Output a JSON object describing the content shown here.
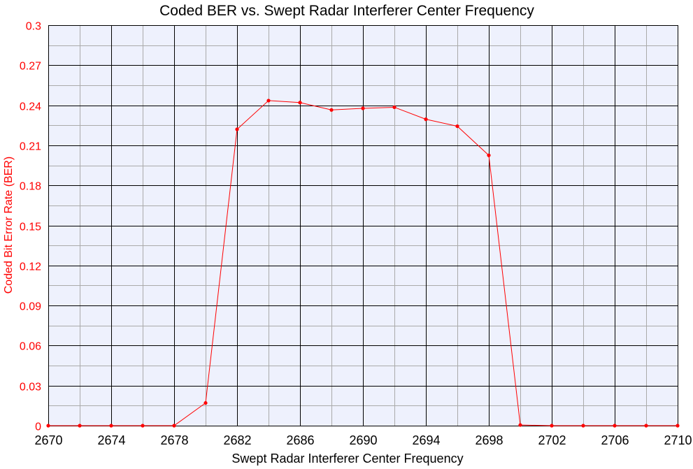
{
  "chart_data": {
    "type": "line",
    "title": "Coded BER vs. Swept Radar Interferer Center Frequency",
    "xlabel": "Swept Radar Interferer Center Frequency",
    "ylabel": "Coded Bit Error Rate (BER)",
    "xlim": [
      2670,
      2710
    ],
    "ylim": [
      0,
      0.3
    ],
    "x_ticks": [
      "2670",
      "2674",
      "2678",
      "2682",
      "2686",
      "2690",
      "2694",
      "2698",
      "2702",
      "2706",
      "2710"
    ],
    "y_ticks": [
      "0",
      "0.03",
      "0.06",
      "0.09",
      "0.12",
      "0.15",
      "0.18",
      "0.21",
      "0.24",
      "0.27",
      "0.3"
    ],
    "x_minor_step": 2,
    "y_minor_step": 0.015,
    "grid": true,
    "legend": "none",
    "series": [
      {
        "x": [
          2670,
          2672,
          2674,
          2676,
          2678,
          2680,
          2682,
          2684,
          2686,
          2688,
          2690,
          2692,
          2694,
          2696,
          2698,
          2700,
          2702,
          2704,
          2706,
          2708,
          2710
        ],
        "y": [
          0,
          0,
          0,
          0,
          0,
          0.017,
          0.222,
          0.2435,
          0.242,
          0.2365,
          0.2377,
          0.2385,
          0.2295,
          0.2243,
          0.2025,
          0.0005,
          0,
          0,
          0,
          0,
          0
        ]
      }
    ],
    "colors": {
      "plot_background": "#eef1fd",
      "major_grid": "#000000",
      "minor_grid": "#aaaaaa",
      "series": "#ff0000",
      "y_axis_text": "#ff0000"
    }
  }
}
